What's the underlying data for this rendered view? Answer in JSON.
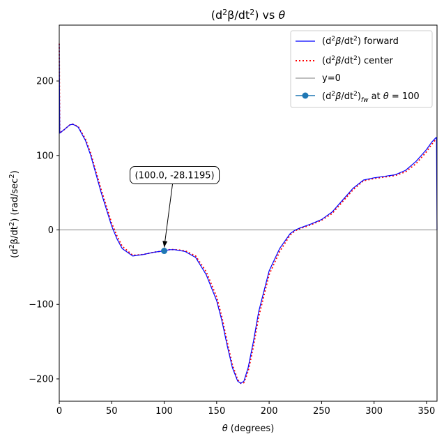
{
  "chart_data": {
    "type": "line",
    "title": "(d²β/dt²) vs θ",
    "xlabel": "θ (degrees)",
    "ylabel": "(d²β/dt²) (rad/sec²)",
    "xlim": [
      0,
      360
    ],
    "ylim": [
      -230,
      275
    ],
    "xticks": [
      0,
      50,
      100,
      150,
      200,
      250,
      300,
      350
    ],
    "yticks": [
      -200,
      -100,
      0,
      100,
      200
    ],
    "grid": false,
    "legend_position": "top-right",
    "series": [
      {
        "name": "(d²β/dt²) forward",
        "color": "#0000ff",
        "style": "solid",
        "x": [
          0,
          0.5,
          5,
          10,
          13,
          18,
          25,
          30,
          40,
          50,
          55,
          60,
          70,
          80,
          90,
          100,
          105,
          110,
          120,
          130,
          140,
          150,
          155,
          160,
          165,
          170,
          173,
          176,
          180,
          185,
          190,
          200,
          210,
          220,
          225,
          230,
          240,
          250,
          260,
          270,
          280,
          290,
          300,
          310,
          320,
          330,
          340,
          350,
          355,
          359,
          359.5,
          360
        ],
        "y": [
          250,
          130,
          135,
          141,
          142,
          138,
          120,
          100,
          50,
          5,
          -12,
          -25,
          -35,
          -33,
          -30,
          -28.1,
          -26.5,
          -26.5,
          -29,
          -37,
          -60,
          -95,
          -122,
          -155,
          -185,
          -203,
          -206,
          -203,
          -185,
          -150,
          -110,
          -55,
          -25,
          -5,
          0,
          3,
          8,
          14,
          24,
          40,
          56,
          67,
          70,
          72,
          74,
          80,
          92,
          108,
          118,
          124,
          124,
          0
        ]
      },
      {
        "name": "(d²β/dt²) center",
        "color": "#ff0000",
        "style": "dotted",
        "x": [
          0,
          0.5,
          5,
          10,
          13,
          18,
          25,
          30,
          40,
          50,
          55,
          60,
          70,
          80,
          90,
          100,
          105,
          110,
          120,
          130,
          140,
          150,
          155,
          160,
          165,
          170,
          173,
          176,
          180,
          185,
          190,
          200,
          210,
          220,
          225,
          230,
          240,
          250,
          260,
          270,
          280,
          290,
          300,
          310,
          320,
          330,
          340,
          350,
          355,
          359
        ],
        "y": [
          250,
          130,
          135,
          141,
          142,
          139,
          122,
          103,
          54,
          9,
          -8,
          -22,
          -34,
          -33,
          -30,
          -28.1,
          -26.5,
          -26.3,
          -28,
          -35,
          -56,
          -90,
          -117,
          -150,
          -181,
          -201,
          -206,
          -205,
          -190,
          -157,
          -117,
          -60,
          -29,
          -7,
          -1,
          2,
          7,
          13,
          22,
          38,
          54,
          66,
          69,
          71,
          73,
          78,
          89,
          105,
          115,
          122
        ]
      },
      {
        "name": "y=0",
        "color": "#000000",
        "style": "solid",
        "x": [
          0,
          360
        ],
        "y": [
          0,
          0
        ]
      },
      {
        "name": "(d²β/dt²)fw at θ = 100",
        "color": "#1f77b4",
        "style": "marker",
        "x": [
          100
        ],
        "y": [
          -28.1195
        ]
      }
    ],
    "annotations": [
      {
        "text": "(100.0, -28.1195)",
        "x": 100,
        "y": -28.1195
      }
    ]
  }
}
